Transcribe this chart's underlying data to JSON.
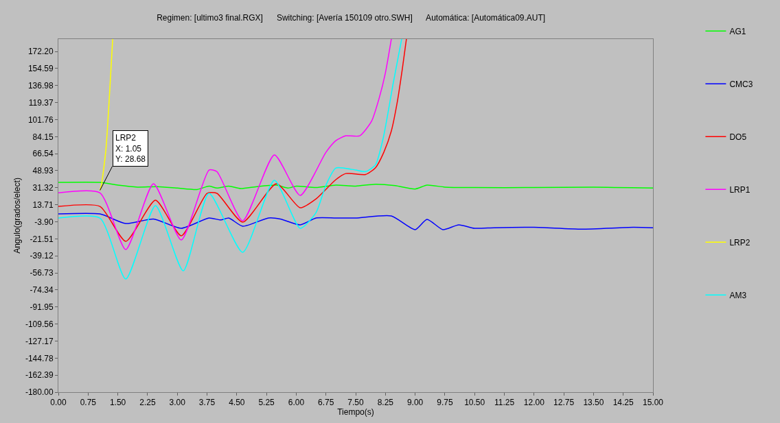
{
  "chart_data": {
    "type": "line",
    "title": "Regimen: [ultimo3 final.RGX]      Switching: [Avería 150109 otro.SWH]      Automática: [Automática09.AUT]",
    "xlabel": "Tiempo(s)",
    "ylabel": "Angulo(grados/elect)",
    "xlim": [
      0,
      15
    ],
    "ylim": [
      -180,
      185
    ],
    "xticks": [
      {
        "value": 0,
        "label": "0.00"
      },
      {
        "value": 0.75,
        "label": "0.75"
      },
      {
        "value": 1.5,
        "label": "1.50"
      },
      {
        "value": 2.25,
        "label": "2.25"
      },
      {
        "value": 3,
        "label": "3.00"
      },
      {
        "value": 3.75,
        "label": "3.75"
      },
      {
        "value": 4.5,
        "label": "4.50"
      },
      {
        "value": 5.25,
        "label": "5.25"
      },
      {
        "value": 6,
        "label": "6.00"
      },
      {
        "value": 6.75,
        "label": "6.75"
      },
      {
        "value": 7.5,
        "label": "7.50"
      },
      {
        "value": 8.25,
        "label": "8.25"
      },
      {
        "value": 9,
        "label": "9.00"
      },
      {
        "value": 9.75,
        "label": "9.75"
      },
      {
        "value": 10.5,
        "label": "10.50"
      },
      {
        "value": 11.25,
        "label": "11.25"
      },
      {
        "value": 12,
        "label": "12.00"
      },
      {
        "value": 12.75,
        "label": "12.75"
      },
      {
        "value": 13.5,
        "label": "13.50"
      },
      {
        "value": 14.25,
        "label": "14.25"
      },
      {
        "value": 15,
        "label": "15.00"
      }
    ],
    "yticks": [
      {
        "value": 172.2,
        "label": "172.20"
      },
      154.59,
      136.98,
      119.37,
      101.76,
      84.15,
      66.54,
      48.93,
      31.32,
      13.71,
      {
        "value": -3.9,
        "label": "-3.90"
      },
      -21.51,
      -39.12,
      -56.73,
      -74.34,
      -91.95,
      -109.56,
      -127.17,
      -144.78,
      -162.39,
      {
        "value": -180,
        "label": "-180.00"
      }
    ],
    "grid": false,
    "legend": "right",
    "annotations": [
      {
        "text": "LRP2\nX: 1.05\nY: 28.68",
        "x": 1.05,
        "y": 28.68
      }
    ],
    "series": [
      {
        "name": "AG1",
        "color": "#00ff00",
        "x": [
          0,
          1.05,
          1.5,
          2.0,
          2.5,
          3.0,
          3.5,
          3.8,
          4.0,
          4.3,
          4.6,
          5.0,
          5.5,
          5.8,
          6.0,
          6.5,
          7.0,
          7.5,
          8.0,
          8.5,
          9.0,
          9.3,
          9.75,
          10.5,
          12,
          13.5,
          15
        ],
        "values": [
          36.8,
          36.8,
          34,
          32,
          32.5,
          31,
          29.5,
          33,
          31,
          33,
          30.5,
          32.5,
          34,
          31,
          33,
          31.5,
          34,
          33,
          35,
          33.5,
          30,
          34,
          32,
          31.5,
          31.5,
          32,
          31
        ]
      },
      {
        "name": "CMC3",
        "color": "#0000ff",
        "x": [
          0,
          1.05,
          1.7,
          2.4,
          3.1,
          3.8,
          4.1,
          4.3,
          4.65,
          5.3,
          5.6,
          6.1,
          6.5,
          7.0,
          7.5,
          8.4,
          9.0,
          9.3,
          9.7,
          10.1,
          10.5,
          11,
          12,
          13.2,
          14.5,
          15
        ],
        "values": [
          4.2,
          4.2,
          -5.7,
          -1,
          -10.6,
          0,
          -2,
          0,
          -8.5,
          0,
          -1,
          -7,
          0,
          0,
          0,
          2.1,
          -12,
          -1.4,
          -12,
          -7,
          -10.6,
          -10,
          -9.6,
          -11.5,
          -9.6,
          -10
        ]
      },
      {
        "name": "DO5",
        "color": "#ff0000",
        "x": [
          0,
          1.05,
          1.7,
          2.45,
          3.1,
          3.75,
          4.0,
          4.65,
          5.5,
          6.1,
          6.5,
          7.0,
          7.25,
          7.75,
          8.0,
          8.21,
          8.4,
          8.55,
          8.68,
          8.78
        ],
        "values": [
          12,
          12,
          -24.1,
          18.4,
          -18.4,
          25.5,
          25.5,
          -4.3,
          35.4,
          10.6,
          19.8,
          39.7,
          46,
          45,
          52,
          68,
          90,
          120,
          155,
          185
        ]
      },
      {
        "name": "LRP1",
        "color": "#ff00ff",
        "x": [
          0,
          1.05,
          1.7,
          2.4,
          3.1,
          3.8,
          4.0,
          4.65,
          5.45,
          6.1,
          6.75,
          7.0,
          7.25,
          7.6,
          7.9,
          8.1,
          8.25,
          8.4
        ],
        "values": [
          26,
          26,
          -32.6,
          35.4,
          -22.7,
          49.6,
          48,
          -2.8,
          65.2,
          23.4,
          68,
          80,
          85,
          85,
          100,
          125,
          150,
          185
        ]
      },
      {
        "name": "LRP2",
        "color": "#ffff00",
        "x": [
          1.05,
          1.09,
          1.2,
          1.37
        ],
        "values": [
          28.68,
          35,
          71,
          185
        ]
      },
      {
        "name": "AM3",
        "color": "#00ffff",
        "x": [
          0,
          1.05,
          1.7,
          2.45,
          3.15,
          3.8,
          4.65,
          5.45,
          6.1,
          6.5,
          6.75,
          7.0,
          7.5,
          7.75,
          8.0,
          8.2,
          8.45,
          8.66
        ],
        "values": [
          0,
          0,
          -63.1,
          12.7,
          -54.6,
          25.5,
          -35.4,
          39,
          -10.6,
          5.6,
          34,
          51.7,
          49.6,
          48,
          55,
          83.6,
          140,
          185
        ]
      }
    ]
  }
}
